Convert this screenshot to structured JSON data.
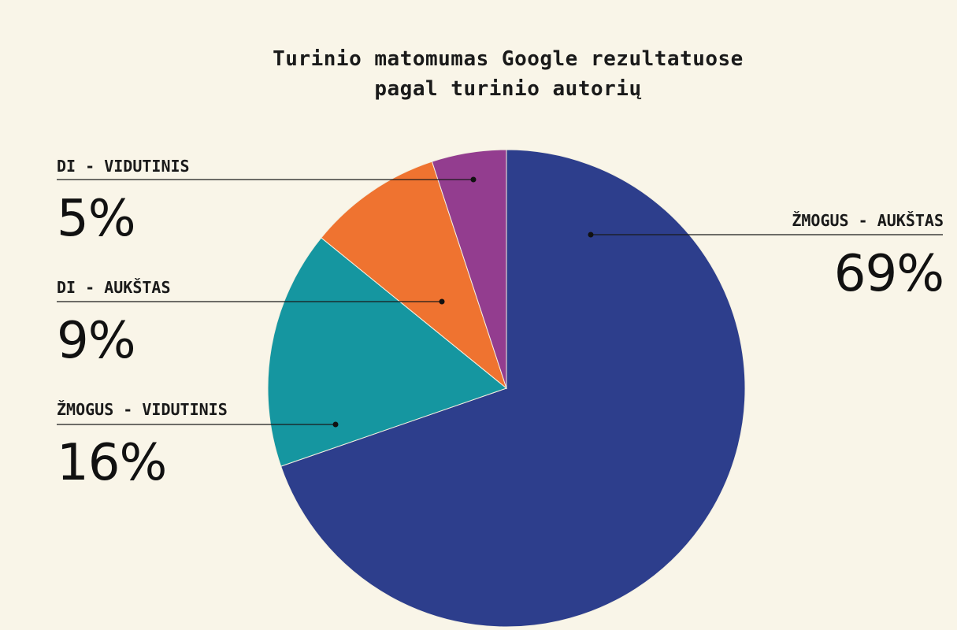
{
  "chart_data": {
    "type": "pie",
    "title": "Turinio matomumas Google rezultatuose pagal turinio autorių",
    "title_lines": [
      "Turinio matomumas Google rezultatuose",
      "pagal turinio autorių"
    ],
    "start_angle_deg": 0,
    "direction": "clockwise",
    "slices": [
      {
        "label": "ŽMOGUS - AUKŠTAS",
        "value": 69,
        "value_label": "69%",
        "color": "#2d3e8c"
      },
      {
        "label": "ŽMOGUS - VIDUTINIS",
        "value": 16,
        "value_label": "16%",
        "color": "#1596a0"
      },
      {
        "label": "DI - AUKŠTAS",
        "value": 9,
        "value_label": "9%",
        "color": "#ef7330"
      },
      {
        "label": "DI - VIDUTINIS",
        "value": 5,
        "value_label": "5%",
        "color": "#933d8f"
      }
    ],
    "legend": "callout-labels",
    "background": "#f9f5e8"
  }
}
